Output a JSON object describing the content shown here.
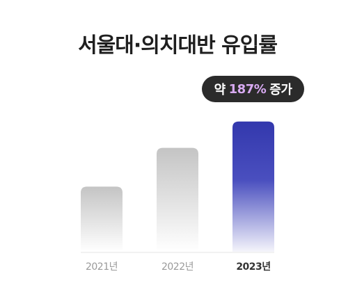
{
  "chart_data": {
    "type": "bar",
    "title": "서울대·의치대반 유입률",
    "categories": [
      "2021년",
      "2022년",
      "2023년"
    ],
    "values": [
      52,
      83,
      104
    ],
    "highlight_index": 2,
    "annotation": {
      "prefix": "약",
      "value": "187%",
      "suffix": "증가"
    },
    "xlabel": "",
    "ylabel": "",
    "grid": false,
    "legend": "none",
    "colors": {
      "muted_bar": "#c4c4c4",
      "highlight_bar": "#3338ad",
      "muted_label": "#9a9a9a",
      "highlight_label": "#333333",
      "badge_bg": "#2b2b2b",
      "badge_accent": "#d8aaf2"
    }
  }
}
